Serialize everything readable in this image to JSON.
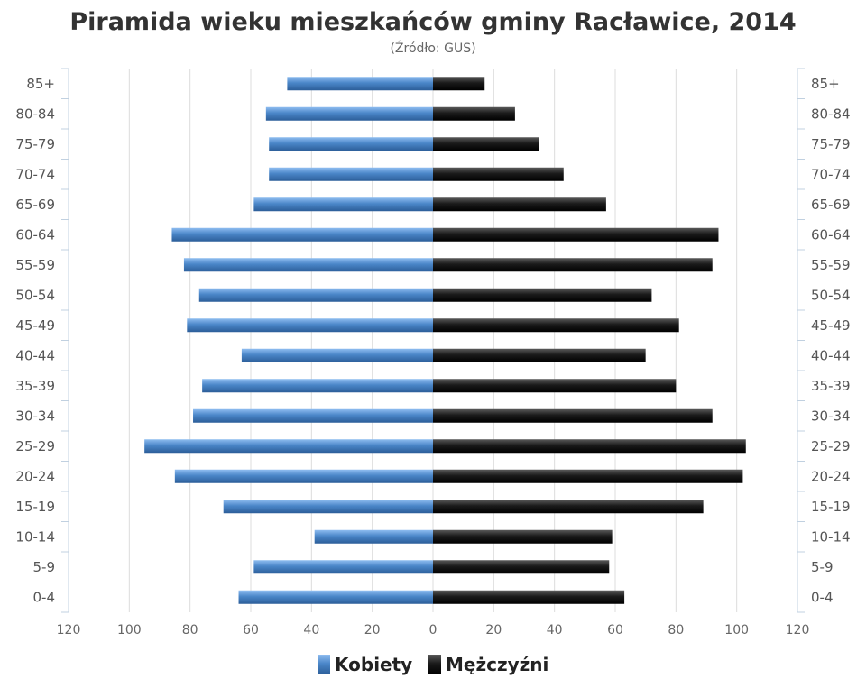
{
  "chart_data": {
    "type": "bar",
    "orientation": "horizontal-pyramid",
    "title": "Piramida wieku mieszkańców gminy Racławice, 2014",
    "subtitle": "(Źródło: GUS)",
    "categories": [
      "85+",
      "80-84",
      "75-79",
      "70-74",
      "65-69",
      "60-64",
      "55-59",
      "50-54",
      "45-49",
      "40-44",
      "35-39",
      "30-34",
      "25-29",
      "20-24",
      "15-19",
      "10-14",
      "5-9",
      "0-4"
    ],
    "series": [
      {
        "name": "Kobiety",
        "color": "#4a86c8",
        "side": "left",
        "values": [
          48,
          55,
          54,
          54,
          59,
          86,
          82,
          77,
          81,
          63,
          76,
          79,
          95,
          85,
          69,
          39,
          59,
          64
        ]
      },
      {
        "name": "Mężczyźni",
        "color": "#1a1a1a",
        "side": "right",
        "values": [
          17,
          27,
          35,
          43,
          57,
          94,
          92,
          72,
          81,
          70,
          80,
          92,
          103,
          102,
          89,
          59,
          58,
          63
        ]
      }
    ],
    "x_ticks": [
      "120",
      "100",
      "80",
      "60",
      "40",
      "20",
      "0",
      "20",
      "40",
      "60",
      "80",
      "100",
      "120"
    ],
    "xlim": [
      -120,
      120
    ],
    "grid": true,
    "legend_position": "bottom"
  }
}
